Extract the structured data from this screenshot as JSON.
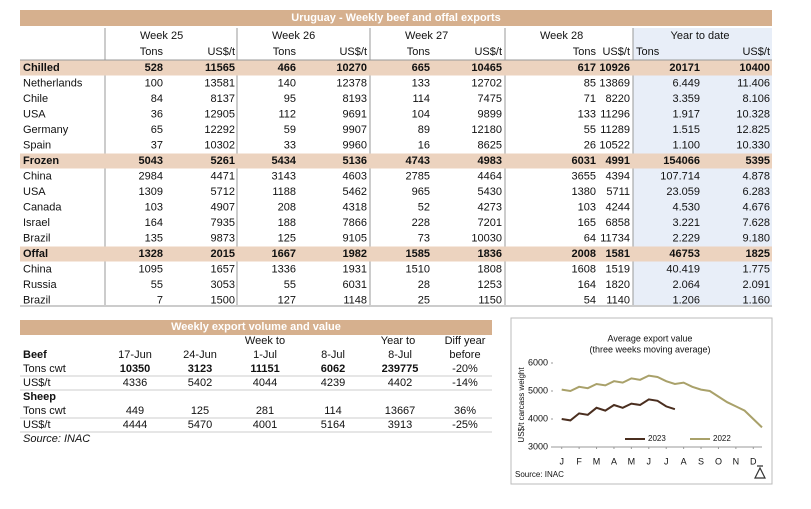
{
  "weekly_table": {
    "title": "Uruguay - Weekly beef and offal exports",
    "weeks": [
      "Week 25",
      "Week 26",
      "Week 27",
      "Week 28"
    ],
    "ytd": "Year to date",
    "subheaders": [
      "Tons",
      "US$/t",
      "Tons",
      "US$/t",
      "Tons",
      "US$/t",
      "Tons",
      "US$/t",
      "Tons",
      "US$/t"
    ],
    "sections": [
      {
        "label": "Chilled",
        "values": [
          "528",
          "11565",
          "466",
          "10270",
          "665",
          "10465",
          "617",
          "10926",
          "20171",
          "10400"
        ],
        "rows": [
          {
            "label": "Netherlands",
            "values": [
              "100",
              "13581",
              "140",
              "12378",
              "133",
              "12702",
              "85",
              "13869",
              "6.449",
              "11.406"
            ]
          },
          {
            "label": "Chile",
            "values": [
              "84",
              "8137",
              "95",
              "8193",
              "114",
              "7475",
              "71",
              "8220",
              "3.359",
              "8.106"
            ]
          },
          {
            "label": "USA",
            "values": [
              "36",
              "12905",
              "112",
              "9691",
              "104",
              "9899",
              "133",
              "11296",
              "1.917",
              "10.328"
            ]
          },
          {
            "label": "Germany",
            "values": [
              "65",
              "12292",
              "59",
              "9907",
              "89",
              "12180",
              "55",
              "11289",
              "1.515",
              "12.825"
            ]
          },
          {
            "label": "Spain",
            "values": [
              "37",
              "10302",
              "33",
              "9960",
              "16",
              "8625",
              "26",
              "10522",
              "1.100",
              "10.330"
            ]
          }
        ]
      },
      {
        "label": "Frozen",
        "values": [
          "5043",
          "5261",
          "5434",
          "5136",
          "4743",
          "4983",
          "6031",
          "4991",
          "154066",
          "5395"
        ],
        "rows": [
          {
            "label": "China",
            "values": [
              "2984",
              "4471",
              "3143",
              "4603",
              "2785",
              "4464",
              "3655",
              "4394",
              "107.714",
              "4.878"
            ]
          },
          {
            "label": "USA",
            "values": [
              "1309",
              "5712",
              "1188",
              "5462",
              "965",
              "5430",
              "1380",
              "5711",
              "23.059",
              "6.283"
            ]
          },
          {
            "label": "Canada",
            "values": [
              "103",
              "4907",
              "208",
              "4318",
              "52",
              "4273",
              "103",
              "4244",
              "4.530",
              "4.676"
            ]
          },
          {
            "label": "Israel",
            "values": [
              "164",
              "7935",
              "188",
              "7866",
              "228",
              "7201",
              "165",
              "6858",
              "3.221",
              "7.628"
            ]
          },
          {
            "label": "Brazil",
            "values": [
              "135",
              "9873",
              "125",
              "9105",
              "73",
              "10030",
              "64",
              "11734",
              "2.229",
              "9.180"
            ]
          }
        ]
      },
      {
        "label": "Offal",
        "values": [
          "1328",
          "2015",
          "1667",
          "1982",
          "1585",
          "1836",
          "2008",
          "1581",
          "46753",
          "1825"
        ],
        "rows": [
          {
            "label": "China",
            "values": [
              "1095",
              "1657",
              "1336",
              "1931",
              "1510",
              "1808",
              "1608",
              "1519",
              "40.419",
              "1.775"
            ]
          },
          {
            "label": "Russia",
            "values": [
              "55",
              "3053",
              "55",
              "6031",
              "28",
              "1253",
              "164",
              "1820",
              "2.064",
              "2.091"
            ]
          },
          {
            "label": "Brazil",
            "values": [
              "7",
              "1500",
              "127",
              "1148",
              "25",
              "1150",
              "54",
              "1140",
              "1.206",
              "1.160"
            ]
          }
        ]
      }
    ]
  },
  "summary_table": {
    "title": "Weekly export volume and value",
    "week_to": "Week to",
    "year_to": "Year to",
    "diff_year": "Diff year",
    "columns": [
      "17-Jun",
      "24-Jun",
      "1-Jul",
      "8-Jul",
      "8-Jul",
      "before"
    ],
    "sections": [
      {
        "label": "Beef",
        "rows": [
          {
            "label": "Tons cwt",
            "values": [
              "10350",
              "3123",
              "11151",
              "6062",
              "239775",
              "-20%"
            ]
          },
          {
            "label": "US$/t",
            "values": [
              "4336",
              "5402",
              "4044",
              "4239",
              "4402",
              "-14%"
            ]
          }
        ]
      },
      {
        "label": "Sheep",
        "rows": [
          {
            "label": "Tons cwt",
            "values": [
              "449",
              "125",
              "281",
              "114",
              "13667",
              "36%"
            ]
          },
          {
            "label": "US$/t",
            "values": [
              "4444",
              "5470",
              "4001",
              "5164",
              "3913",
              "-25%"
            ]
          }
        ]
      }
    ],
    "source": "Source: INAC"
  },
  "chart_data": {
    "type": "line",
    "title": "Average export  value",
    "subtitle": "(three weeks moving average)",
    "y_label": "US$/t carcass weight",
    "source": "Source: INAC",
    "xlim": [
      0,
      12
    ],
    "xticks": [
      {
        "value": 0.5,
        "label": "J"
      },
      {
        "value": 1.5,
        "label": "F"
      },
      {
        "value": 2.5,
        "label": "M"
      },
      {
        "value": 3.5,
        "label": "A"
      },
      {
        "value": 4.5,
        "label": "M"
      },
      {
        "value": 5.5,
        "label": "J"
      },
      {
        "value": 6.5,
        "label": "J"
      },
      {
        "value": 7.5,
        "label": "A"
      },
      {
        "value": 8.5,
        "label": "S"
      },
      {
        "value": 9.5,
        "label": "O"
      },
      {
        "value": 10.5,
        "label": "N"
      },
      {
        "value": 11.5,
        "label": "D"
      }
    ],
    "ylim": [
      3000,
      6000
    ],
    "yticks": [
      3000,
      4000,
      5000,
      6000
    ],
    "series": [
      {
        "name": "2023",
        "color": "#4a2e1f",
        "x": [
          0.5,
          1,
          1.5,
          2,
          2.5,
          3,
          3.5,
          4,
          4.5,
          5,
          5.5,
          6,
          6.5,
          7
        ],
        "values": [
          4000,
          3950,
          4200,
          4150,
          4400,
          4300,
          4500,
          4400,
          4550,
          4500,
          4700,
          4650,
          4450,
          4350
        ]
      },
      {
        "name": "2022",
        "color": "#a9a16a",
        "x": [
          0.5,
          1,
          1.5,
          2,
          2.5,
          3,
          3.5,
          4,
          4.5,
          5,
          5.5,
          6,
          6.5,
          7,
          7.5,
          8,
          8.5,
          9,
          9.5,
          10,
          10.5,
          11,
          11.5,
          12
        ],
        "values": [
          5050,
          5000,
          5150,
          5100,
          5250,
          5200,
          5350,
          5300,
          5450,
          5400,
          5550,
          5500,
          5350,
          5250,
          5300,
          5150,
          5050,
          5000,
          4800,
          4600,
          4450,
          4300,
          4000,
          3700
        ]
      }
    ]
  }
}
